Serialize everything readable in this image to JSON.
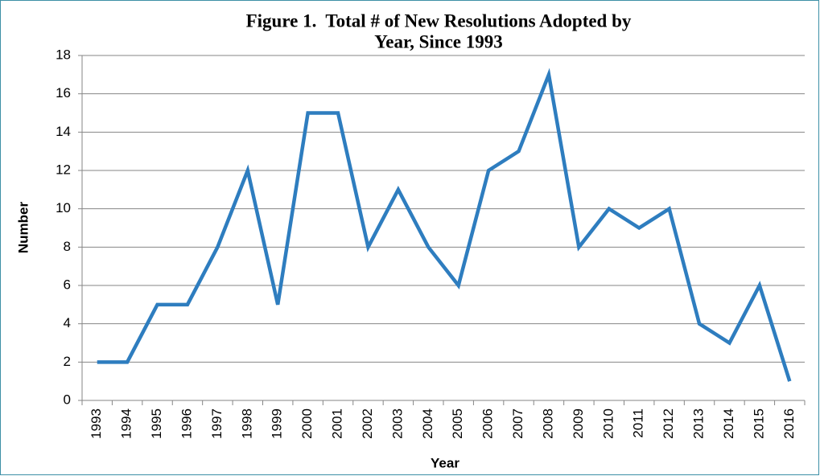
{
  "chart_data": {
    "type": "line",
    "title": [
      "Figure 1.  Total # of New Resolutions Adopted by",
      "Year, Since 1993"
    ],
    "x_label": "Year",
    "y_label": "Number",
    "categories": [
      "1993",
      "1994",
      "1995",
      "1996",
      "1997",
      "1998",
      "1999",
      "2000",
      "2001",
      "2002",
      "2003",
      "2004",
      "2005",
      "2006",
      "2007",
      "2008",
      "2009",
      "2010",
      "2011",
      "2012",
      "2013",
      "2014",
      "2015",
      "2016"
    ],
    "series": [
      {
        "name": "Number",
        "color": "#2e7dbf",
        "values": [
          2,
          2,
          5,
          5,
          8,
          12,
          5,
          15,
          15,
          8,
          11,
          8,
          6,
          12,
          13,
          17,
          8,
          10,
          9,
          10,
          4,
          3,
          6,
          1
        ]
      }
    ],
    "ylim": [
      0,
      18
    ],
    "yticks": [
      0,
      2,
      4,
      6,
      8,
      10,
      12,
      14,
      16,
      18
    ],
    "grid": true,
    "legend": false
  }
}
